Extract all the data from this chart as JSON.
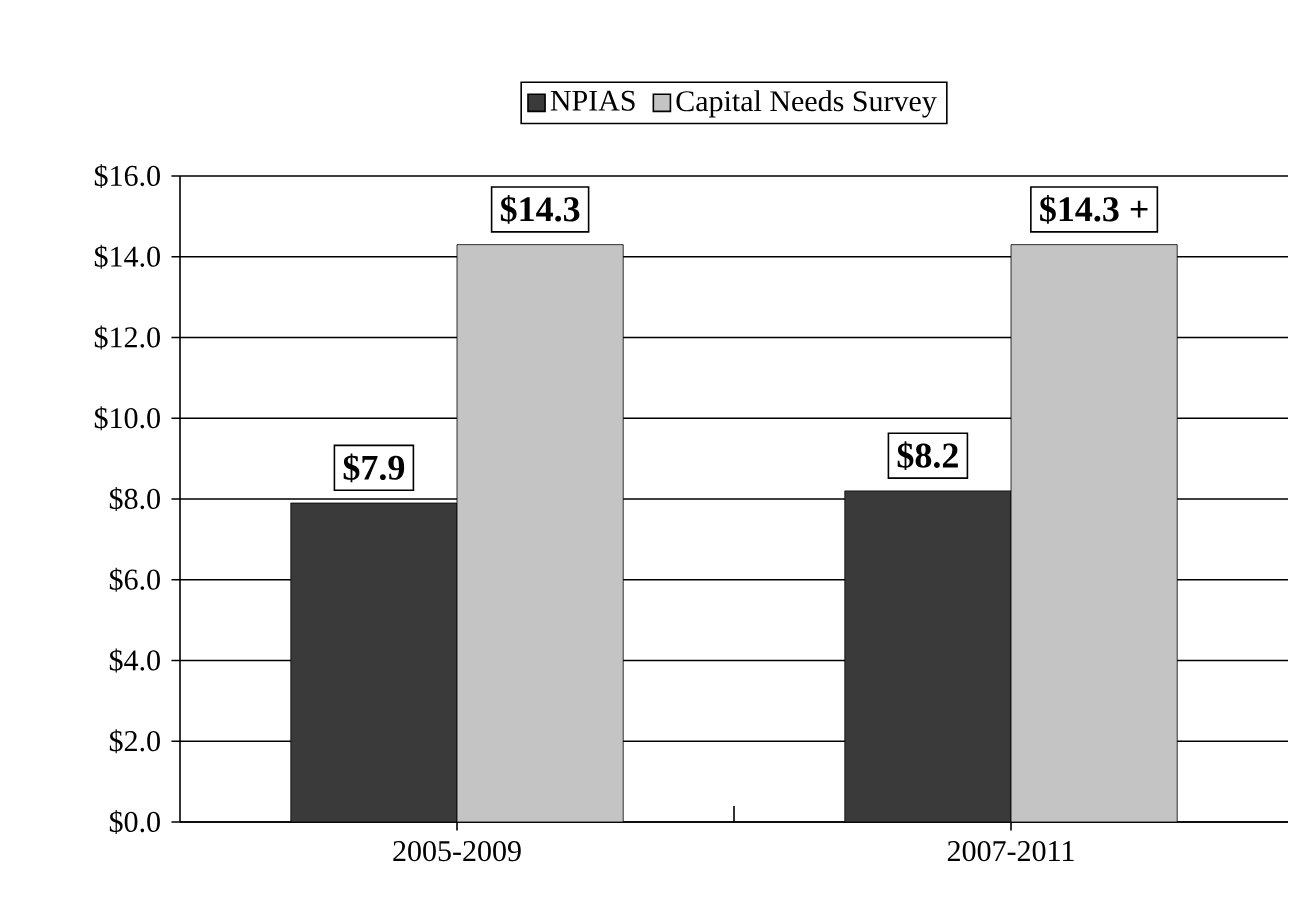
{
  "chart_data": {
    "type": "bar",
    "categories": [
      "2005-2009",
      "2007-2011"
    ],
    "series": [
      {
        "name": "NPIAS",
        "color": "#3a3a3a",
        "values": [
          7.9,
          8.2
        ],
        "value_labels": [
          "$7.9",
          "$8.2"
        ]
      },
      {
        "name": "Capital Needs Survey",
        "color": "#c4c4c4",
        "values": [
          14.3,
          14.3
        ],
        "value_labels": [
          "$14.3",
          "$14.3 +"
        ]
      }
    ],
    "ylim": [
      0,
      16
    ],
    "yticks": [
      {
        "value": 0,
        "label": "$0.0"
      },
      {
        "value": 2,
        "label": "$2.0"
      },
      {
        "value": 4,
        "label": "$4.0"
      },
      {
        "value": 6,
        "label": "$6.0"
      },
      {
        "value": 8,
        "label": "$8.0"
      },
      {
        "value": 10,
        "label": "$10.0"
      },
      {
        "value": 12,
        "label": "$12.0"
      },
      {
        "value": 14,
        "label": "$14.0"
      },
      {
        "value": 16,
        "label": "$16.0"
      }
    ],
    "grid": "y",
    "legend": "top"
  }
}
